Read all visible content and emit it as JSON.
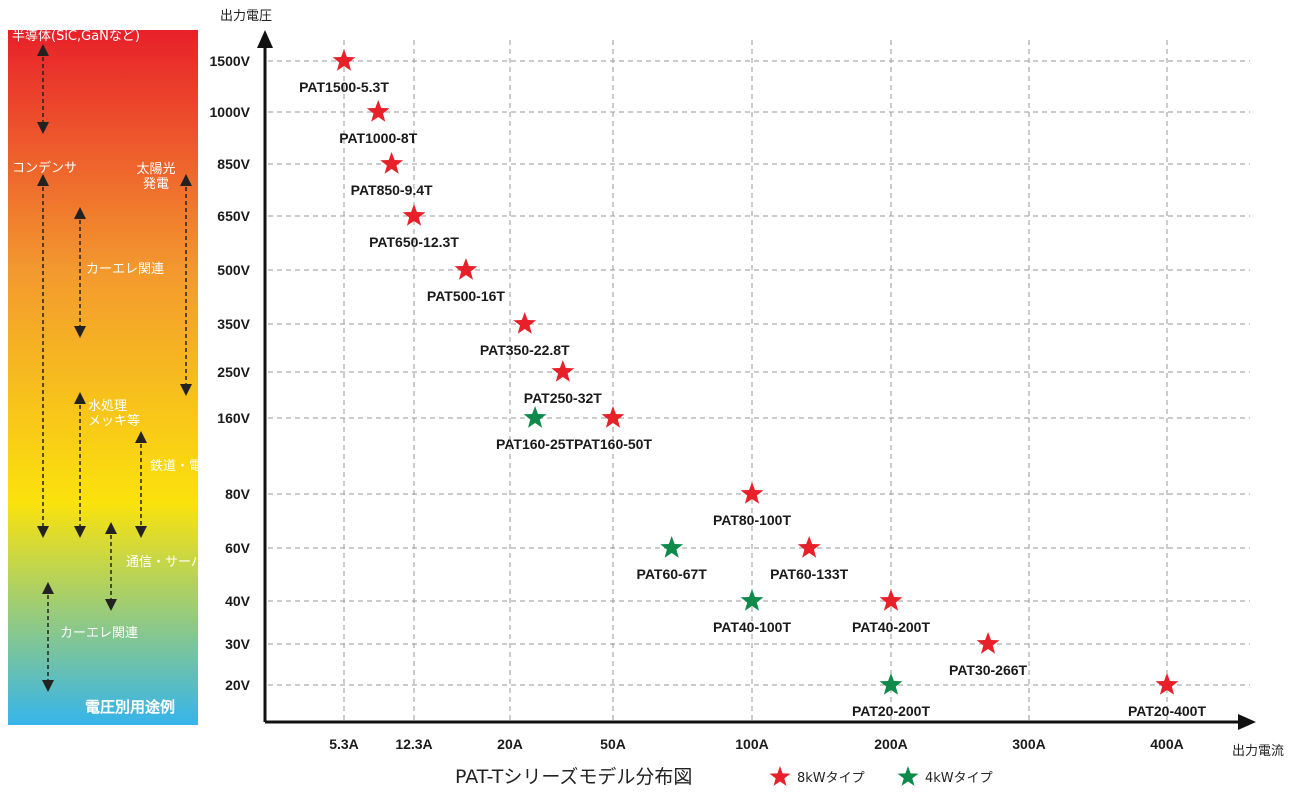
{
  "chart_data": {
    "type": "scatter",
    "title": "PAT-Tシリーズモデル分布図",
    "xlabel": "出力電流",
    "ylabel": "出力電圧",
    "x_ticks": [
      "5.3A",
      "12.3A",
      "20A",
      "50A",
      "100A",
      "200A",
      "300A",
      "400A"
    ],
    "y_ticks": [
      "1500V",
      "1000V",
      "850V",
      "650V",
      "500V",
      "350V",
      "250V",
      "160V",
      "80V",
      "60V",
      "40V",
      "30V",
      "20V"
    ],
    "grid": true,
    "legend": [
      {
        "name": "8kWタイプ",
        "color": "#e8202a"
      },
      {
        "name": "4kWタイプ",
        "color": "#0e8a4a"
      }
    ],
    "points": [
      {
        "model": "PAT1500-5.3T",
        "current_A": 5.3,
        "voltage_V": 1500,
        "type": "8kW"
      },
      {
        "model": "PAT1000-8T",
        "current_A": 8,
        "voltage_V": 1000,
        "type": "8kW"
      },
      {
        "model": "PAT850-9.4T",
        "current_A": 9.4,
        "voltage_V": 850,
        "type": "8kW"
      },
      {
        "model": "PAT650-12.3T",
        "current_A": 12.3,
        "voltage_V": 650,
        "type": "8kW"
      },
      {
        "model": "PAT500-16T",
        "current_A": 16,
        "voltage_V": 500,
        "type": "8kW"
      },
      {
        "model": "PAT350-22.8T",
        "current_A": 22.8,
        "voltage_V": 350,
        "type": "8kW"
      },
      {
        "model": "PAT250-32T",
        "current_A": 32,
        "voltage_V": 250,
        "type": "8kW"
      },
      {
        "model": "PAT160-25T",
        "current_A": 25,
        "voltage_V": 160,
        "type": "4kW"
      },
      {
        "model": "PAT160-50T",
        "current_A": 50,
        "voltage_V": 160,
        "type": "8kW"
      },
      {
        "model": "PAT80-100T",
        "current_A": 100,
        "voltage_V": 80,
        "type": "8kW"
      },
      {
        "model": "PAT60-67T",
        "current_A": 67,
        "voltage_V": 60,
        "type": "4kW"
      },
      {
        "model": "PAT60-133T",
        "current_A": 133,
        "voltage_V": 60,
        "type": "8kW"
      },
      {
        "model": "PAT40-100T",
        "current_A": 100,
        "voltage_V": 40,
        "type": "4kW"
      },
      {
        "model": "PAT40-200T",
        "current_A": 200,
        "voltage_V": 40,
        "type": "8kW"
      },
      {
        "model": "PAT30-266T",
        "current_A": 266,
        "voltage_V": 30,
        "type": "8kW"
      },
      {
        "model": "PAT20-200T",
        "current_A": 200,
        "voltage_V": 20,
        "type": "4kW"
      },
      {
        "model": "PAT20-400T",
        "current_A": 400,
        "voltage_V": 20,
        "type": "8kW"
      }
    ]
  },
  "side_panel": {
    "gradient_colors": [
      "#e8202a",
      "#f39a2e",
      "#fbe20c",
      "#36b4ea"
    ],
    "footer": "電圧別用途例",
    "applications": [
      {
        "label": "半導体(SiC,GaNなど)"
      },
      {
        "label": "コンデンサ"
      },
      {
        "label": "太陽光\n発電"
      },
      {
        "label": "カーエレ関連"
      },
      {
        "label": "水処理\nメッキ等"
      },
      {
        "label": "鉄道・電力"
      },
      {
        "label": "通信・サーバ"
      },
      {
        "label": "カーエレ関連"
      }
    ]
  }
}
